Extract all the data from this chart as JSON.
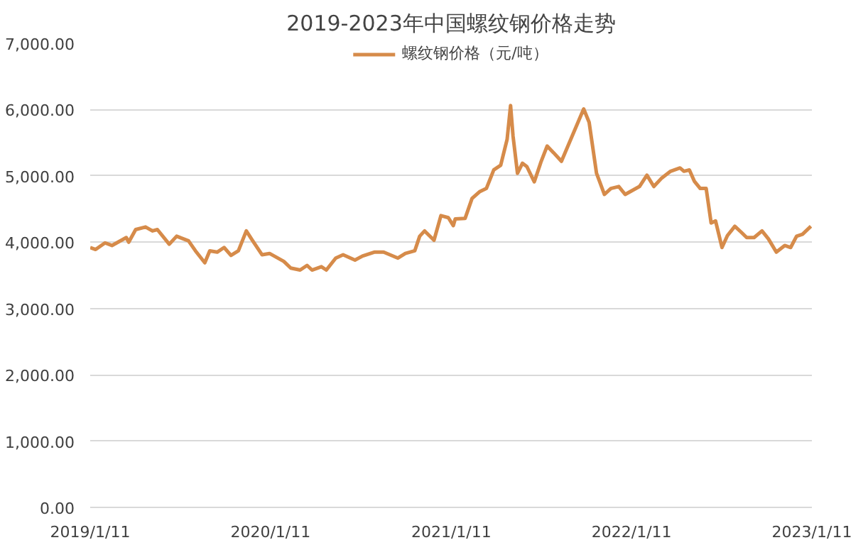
{
  "chart_data": {
    "type": "line",
    "title": "2019-2023年中国螺纹钢价格走势",
    "x": [
      "2019-01-11",
      "2019-01-22",
      "2019-02-10",
      "2019-02-24",
      "2019-03-25",
      "2019-03-30",
      "2019-04-13",
      "2019-05-03",
      "2019-05-17",
      "2019-05-27",
      "2019-06-20",
      "2019-07-05",
      "2019-07-29",
      "2019-08-12",
      "2019-08-31",
      "2019-09-10",
      "2019-09-25",
      "2019-10-09",
      "2019-10-23",
      "2019-11-07",
      "2019-11-23",
      "2019-12-06",
      "2019-12-25",
      "2020-01-09",
      "2020-02-07",
      "2020-02-21",
      "2020-03-11",
      "2020-03-25",
      "2020-04-04",
      "2020-04-23",
      "2020-05-03",
      "2020-05-22",
      "2020-06-06",
      "2020-06-30",
      "2020-07-15",
      "2020-08-08",
      "2020-08-27",
      "2020-09-25",
      "2020-10-10",
      "2020-10-29",
      "2020-11-08",
      "2020-11-18",
      "2020-12-07",
      "2020-12-21",
      "2021-01-05",
      "2021-01-15",
      "2021-01-19",
      "2021-02-08",
      "2021-02-22",
      "2021-03-09",
      "2021-03-23",
      "2021-04-07",
      "2021-04-21",
      "2021-05-04",
      "2021-05-11",
      "2021-05-16",
      "2021-05-25",
      "2021-06-04",
      "2021-06-13",
      "2021-06-28",
      "2021-07-12",
      "2021-07-24",
      "2021-08-06",
      "2021-08-22",
      "2021-10-06",
      "2021-10-17",
      "2021-11-01",
      "2021-11-17",
      "2021-11-30",
      "2021-12-16",
      "2021-12-29",
      "2022-01-27",
      "2022-02-11",
      "2022-02-25",
      "2022-03-12",
      "2022-03-31",
      "2022-04-19",
      "2022-04-27",
      "2022-05-08",
      "2022-05-18",
      "2022-05-30",
      "2022-06-11",
      "2022-06-21",
      "2022-06-30",
      "2022-07-13",
      "2022-07-24",
      "2022-08-08",
      "2022-08-21",
      "2022-09-01",
      "2022-09-16",
      "2022-10-02",
      "2022-10-15",
      "2022-10-31",
      "2022-11-17",
      "2022-11-29",
      "2022-12-11",
      "2022-12-23",
      "2023-01-09"
    ],
    "series": [
      {
        "name": "螺纹钢价格（元/吨）",
        "color": "#d68b4a",
        "values": [
          3920,
          3890,
          3990,
          3950,
          4070,
          4000,
          4190,
          4230,
          4170,
          4190,
          3970,
          4090,
          4020,
          3870,
          3690,
          3870,
          3850,
          3920,
          3800,
          3870,
          4170,
          4020,
          3810,
          3830,
          3710,
          3610,
          3580,
          3650,
          3580,
          3630,
          3580,
          3760,
          3810,
          3730,
          3790,
          3850,
          3850,
          3760,
          3830,
          3870,
          4090,
          4170,
          4030,
          4400,
          4370,
          4250,
          4350,
          4360,
          4660,
          4760,
          4810,
          5090,
          5160,
          5550,
          6060,
          5600,
          5040,
          5190,
          5140,
          4910,
          5220,
          5450,
          5350,
          5220,
          6010,
          5810,
          5040,
          4720,
          4810,
          4840,
          4720,
          4840,
          5010,
          4840,
          4960,
          5070,
          5120,
          5070,
          5090,
          4920,
          4810,
          4810,
          4290,
          4320,
          3920,
          4100,
          4240,
          4150,
          4070,
          4070,
          4170,
          4050,
          3850,
          3950,
          3920,
          4090,
          4120,
          4240
        ]
      }
    ],
    "xlim": [
      "2019-01-11",
      "2023-01-11"
    ],
    "xticks": [
      {
        "value": "2019-01-11",
        "label": "2019/1/11"
      },
      {
        "value": "2020-01-11",
        "label": "2020/1/11"
      },
      {
        "value": "2021-01-11",
        "label": "2021/1/11"
      },
      {
        "value": "2022-01-11",
        "label": "2022/1/11"
      },
      {
        "value": "2023-01-11",
        "label": "2023/1/11"
      }
    ],
    "ylim": [
      0,
      7000
    ],
    "yticks": [
      {
        "value": 0,
        "label": "0.00"
      },
      {
        "value": 1000,
        "label": "1,000.00"
      },
      {
        "value": 2000,
        "label": "2,000.00"
      },
      {
        "value": 3000,
        "label": "3,000.00"
      },
      {
        "value": 4000,
        "label": "4,000.00"
      },
      {
        "value": 5000,
        "label": "5,000.00"
      },
      {
        "value": 6000,
        "label": "6,000.00"
      },
      {
        "value": 7000,
        "label": "7,000.00"
      }
    ],
    "grid": "y",
    "legend": "top",
    "marker": "none",
    "line_style": "solid"
  }
}
